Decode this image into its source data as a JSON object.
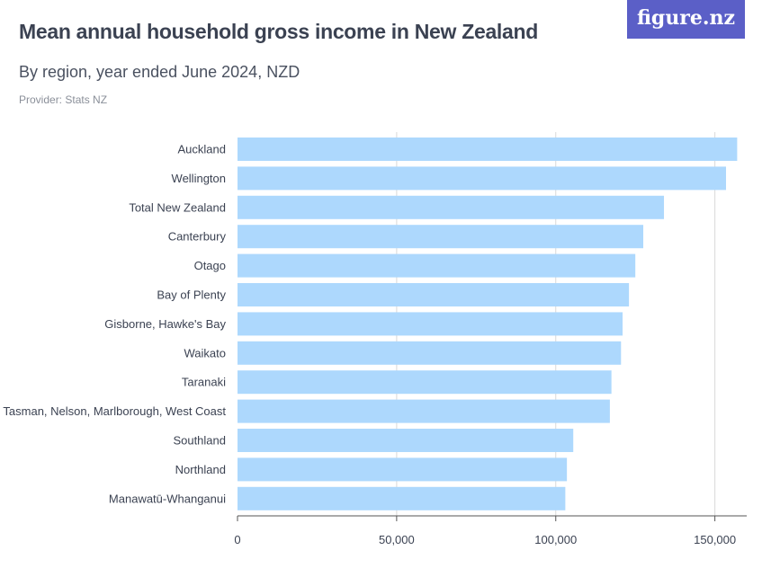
{
  "header": {
    "title": "Mean annual household gross income in New Zealand",
    "subtitle": "By region, year ended June 2024, NZD",
    "provider": "Provider: Stats NZ"
  },
  "logo": {
    "text": "figure.nz"
  },
  "colors": {
    "bar": "#add8fd",
    "grid": "#d9d9d9",
    "axis": "#555555",
    "logo_bg": "#5b5fc7"
  },
  "chart_data": {
    "type": "bar",
    "orientation": "horizontal",
    "categories": [
      "Auckland",
      "Wellington",
      "Total New Zealand",
      "Canterbury",
      "Otago",
      "Bay of Plenty",
      "Gisborne, Hawke's Bay",
      "Waikato",
      "Taranaki",
      "Tasman, Nelson, Marlborough, West Coast",
      "Southland",
      "Northland",
      "Manawatū-Whanganui"
    ],
    "values": [
      157000,
      153500,
      134000,
      127500,
      125000,
      123000,
      121000,
      120500,
      117500,
      117000,
      105500,
      103500,
      103000
    ],
    "xlim": [
      0,
      160000
    ],
    "xticks": [
      0,
      50000,
      100000,
      150000
    ],
    "xtick_labels": [
      "0",
      "50,000",
      "100,000",
      "150,000"
    ],
    "grid": true,
    "legend": "none"
  }
}
